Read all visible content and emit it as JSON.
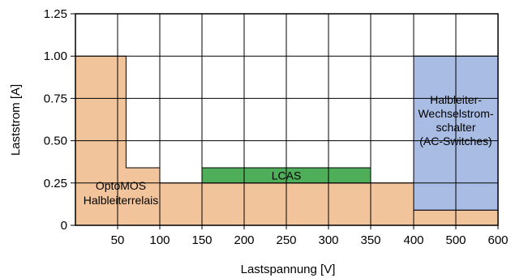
{
  "chart_data": {
    "type": "area",
    "xlabel": "Lastspannung [V]",
    "ylabel": "Laststrom [A]",
    "x_ticks": [
      "50",
      "100",
      "150",
      "200",
      "250",
      "300",
      "350",
      "400",
      "500",
      "600"
    ],
    "y_ticks": [
      "0",
      "0.25",
      "0.50",
      "0.75",
      "1.00",
      "1.25"
    ],
    "ylim": [
      0,
      1.25
    ],
    "grid": true,
    "colors": {
      "optomos": "#f2c49c",
      "lcas": "#4fae5a",
      "ac": "#a9bde4",
      "grid": "#000000"
    },
    "regions": [
      {
        "key": "optomos",
        "label_lines": [
          "OptoMOS",
          "Halbleiterrelais"
        ],
        "profile": [
          {
            "x_from": 0,
            "x_to": 60,
            "y": 1.0
          },
          {
            "x_from": 60,
            "x_to": 100,
            "y": 0.34
          },
          {
            "x_from": 100,
            "x_to": 400,
            "y": 0.25
          },
          {
            "x_from": 400,
            "x_to": 600,
            "y": 0.09
          }
        ]
      },
      {
        "key": "lcas",
        "label_lines": [
          "LCAS"
        ],
        "x_from": 150,
        "x_to": 350,
        "y_from": 0.25,
        "y_to": 0.34
      },
      {
        "key": "ac",
        "label_lines": [
          "Halbleiter-",
          "Wechselstrom-",
          "schalter",
          "(AC-Switches)"
        ],
        "x_from": 400,
        "x_to": 600,
        "y_from": 0.09,
        "y_to": 1.0
      }
    ]
  }
}
